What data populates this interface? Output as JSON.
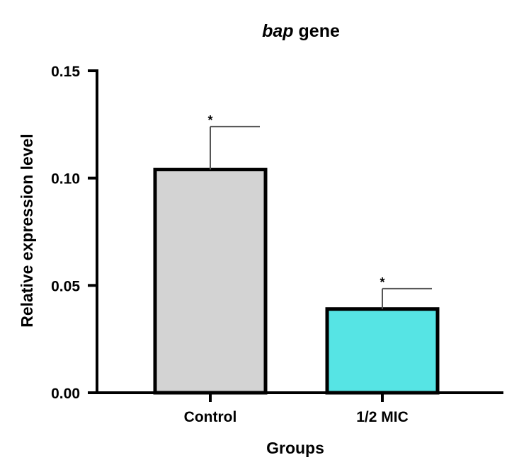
{
  "chart_data": {
    "type": "bar",
    "title_italic": "bap",
    "title_rest": " gene",
    "xlabel": "Groups",
    "ylabel": "Relative expression level",
    "ylim": [
      0,
      0.15
    ],
    "yticks": [
      "0.00",
      "0.05",
      "0.10",
      "0.15"
    ],
    "ytick_values": [
      0,
      0.05,
      0.1,
      0.15
    ],
    "categories": [
      "Control",
      "1/2 MIC"
    ],
    "values": [
      0.104,
      0.039
    ],
    "errors": [
      0.02,
      0.0095
    ],
    "significance": [
      "*",
      "*"
    ],
    "colors": [
      "#d3d3d3",
      "#56e4e4"
    ],
    "grid": false
  }
}
